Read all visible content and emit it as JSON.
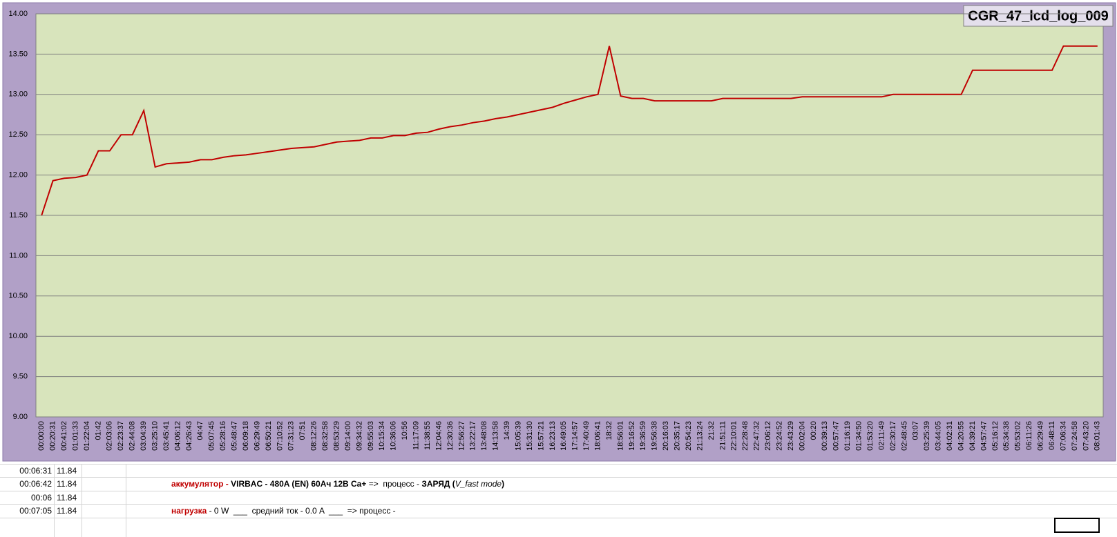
{
  "chart_data": {
    "type": "line",
    "title": "CGR_47_lcd_log_009",
    "categories": [
      "00:00:00",
      "00:20:31",
      "00:41:02",
      "01:01:33",
      "01:22:04",
      "01:42",
      "02:03:06",
      "02:23:37",
      "02:44:08",
      "03:04:39",
      "03:25:10",
      "03:45:41",
      "04:06:12",
      "04:26:43",
      "04:47",
      "05:07:45",
      "05:28:16",
      "05:48:47",
      "06:09:18",
      "06:29:49",
      "06:50:21",
      "07:10:52",
      "07:31:23",
      "07:51",
      "08:12:26",
      "08:32:58",
      "08:53:29",
      "09:14:00",
      "09:34:32",
      "09:55:03",
      "10:15:34",
      "10:36:06",
      "10:56",
      "11:17:09",
      "11:38:55",
      "12:04:46",
      "12:30:36",
      "12:56:27",
      "13:22:17",
      "13:48:08",
      "14:13:58",
      "14:39",
      "15:05:39",
      "15:31:30",
      "15:57:21",
      "16:23:13",
      "16:49:05",
      "17:14:57",
      "17:40:49",
      "18:06:41",
      "18:32",
      "18:56:01",
      "19:16:52",
      "19:36:59",
      "19:56:38",
      "20:16:03",
      "20:35:17",
      "20:54:23",
      "21:13:24",
      "21:32",
      "21:51:11",
      "22:10:01",
      "22:28:48",
      "22:47:32",
      "23:06:12",
      "23:24:52",
      "23:43:29",
      "00:02:04",
      "00:20",
      "00:39:13",
      "00:57:47",
      "01:16:19",
      "01:34:50",
      "01:53:20",
      "02:11:49",
      "02:30:17",
      "02:48:45",
      "03:07",
      "03:25:39",
      "03:44:05",
      "04:02:31",
      "04:20:55",
      "04:39:21",
      "04:57:47",
      "05:16:12",
      "05:34:38",
      "05:53:02",
      "06:11:26",
      "06:29:49",
      "06:48:11",
      "07:06:34",
      "07:24:58",
      "07:43:20",
      "08:01:43"
    ],
    "series": [
      {
        "color": "#c00000",
        "values": [
          11.5,
          11.93,
          11.96,
          11.97,
          12.0,
          12.3,
          12.3,
          12.5,
          12.5,
          12.8,
          12.1,
          12.14,
          12.15,
          12.16,
          12.19,
          12.19,
          12.22,
          12.24,
          12.25,
          12.27,
          12.29,
          12.31,
          12.33,
          12.34,
          12.35,
          12.38,
          12.41,
          12.42,
          12.43,
          12.46,
          12.46,
          12.49,
          12.49,
          12.52,
          12.53,
          12.57,
          12.6,
          12.62,
          12.65,
          12.67,
          12.7,
          12.72,
          12.75,
          12.78,
          12.81,
          12.84,
          12.89,
          12.93,
          12.97,
          13.0,
          13.6,
          12.98,
          12.95,
          12.95,
          12.92,
          12.92,
          12.92,
          12.92,
          12.92,
          12.92,
          12.95,
          12.95,
          12.95,
          12.95,
          12.95,
          12.95,
          12.95,
          12.97,
          12.97,
          12.97,
          12.97,
          12.97,
          12.97,
          12.97,
          12.97,
          13.0,
          13.0,
          13.0,
          13.0,
          13.0,
          13.0,
          13.0,
          13.3,
          13.3,
          13.3,
          13.3,
          13.3,
          13.3,
          13.3,
          13.3,
          13.6,
          13.6,
          13.6,
          13.6
        ]
      }
    ],
    "ylim": [
      9,
      14
    ],
    "yticks": [
      {
        "value": 9,
        "label": "9.00"
      },
      {
        "value": 9.5,
        "label": "9.50"
      },
      {
        "value": 10,
        "label": "10.00"
      },
      {
        "value": 10.5,
        "label": "10.50"
      },
      {
        "value": 11,
        "label": "11.00"
      },
      {
        "value": 11.5,
        "label": "11.50"
      },
      {
        "value": 12,
        "label": "12.00"
      },
      {
        "value": 12.5,
        "label": "12.50"
      },
      {
        "value": 13,
        "label": "13.00"
      },
      {
        "value": 13.5,
        "label": "13.50"
      },
      {
        "value": 14,
        "label": "14.00"
      }
    ],
    "grid": true
  },
  "sheet": {
    "rows": [
      [
        "00:06:31",
        "11.84"
      ],
      [
        "00:06:42",
        "11.84"
      ],
      [
        "00:06",
        "11.84"
      ],
      [
        "00:07:05",
        "11.84"
      ]
    ],
    "note1": {
      "label": "аккумулятор - ",
      "device": "VIRBAC - 480A (EN) 60Ач 12В Ca+",
      "arrow": " =>  процесс - ",
      "mode": "ЗАРЯД",
      "open": " (",
      "submode": "V_fast mode",
      "close": ")"
    },
    "note2": {
      "label": "нагрузка",
      "text": " - 0 W  ___  средний ток - 0.0 A  ___  => процесс -"
    }
  }
}
